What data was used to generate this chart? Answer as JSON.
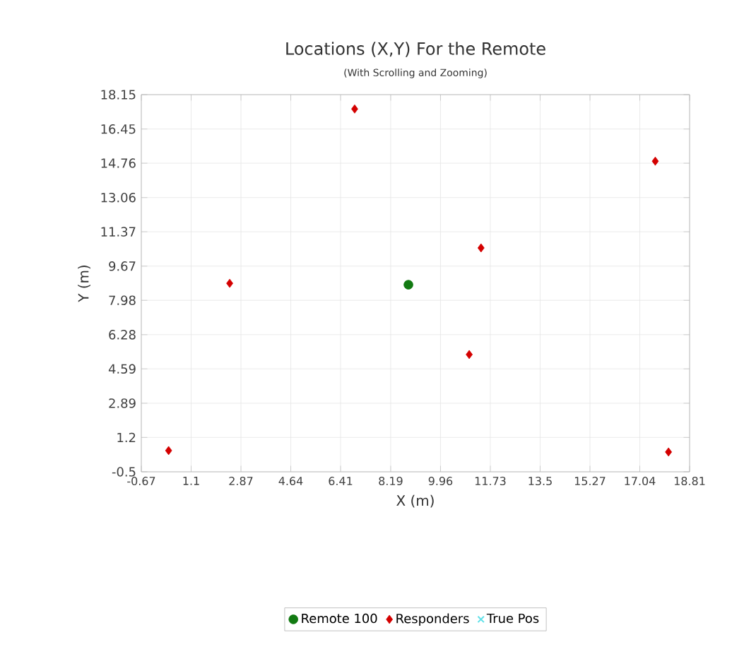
{
  "chart_data": {
    "type": "scatter",
    "title": "Locations (X,Y) For the Remote",
    "subtitle": "(With Scrolling and Zooming)",
    "xlabel": "X (m)",
    "ylabel": "Y (m)",
    "xlim": [
      -0.67,
      18.81
    ],
    "xticks": [
      -0.67,
      1.1,
      2.87,
      4.64,
      6.41,
      8.19,
      9.96,
      11.73,
      13.5,
      15.27,
      17.04,
      18.81
    ],
    "ylim": [
      -0.5,
      18.15
    ],
    "yticks": [
      -0.5,
      1.2,
      2.89,
      4.59,
      6.28,
      7.98,
      9.67,
      11.37,
      13.06,
      14.76,
      16.45,
      18.15
    ],
    "grid": true,
    "legend": "bottom",
    "series": [
      {
        "name": "Remote 100",
        "color": "#127a12",
        "marker": "circle",
        "x": [
          8.82
        ],
        "values": [
          8.75
        ]
      },
      {
        "name": "Responders",
        "color": "#d40000",
        "marker": "diamond",
        "x": [
          0.3,
          2.47,
          6.91,
          11.4,
          10.98,
          17.59,
          18.06
        ],
        "values": [
          0.55,
          8.82,
          17.44,
          10.57,
          5.3,
          14.86,
          0.48
        ]
      },
      {
        "name": "True Pos",
        "color": "#5fe0e8",
        "marker": "cross"
      }
    ]
  }
}
